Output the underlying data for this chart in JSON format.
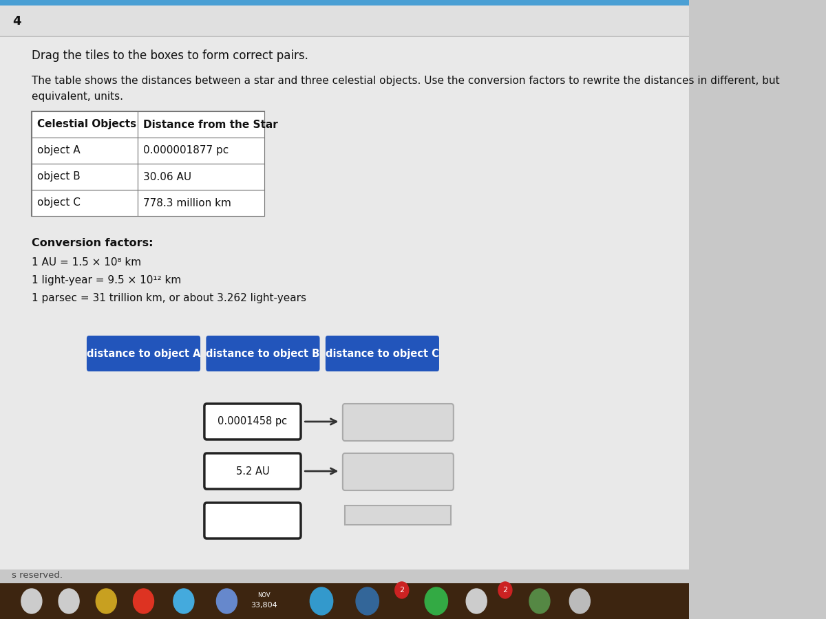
{
  "bg_outer": "#c8c8c8",
  "bg_page": "#e8e8e8",
  "question_number": "4",
  "instruction": "Drag the tiles to the boxes to form correct pairs.",
  "description_line1": "The table shows the distances between a star and three celestial objects. Use the conversion factors to rewrite the distances in different, but",
  "description_line2": "equivalent, units.",
  "table_headers": [
    "Celestial Objects",
    "Distance from the Star"
  ],
  "table_rows": [
    [
      "object A",
      "0.000001877 pc"
    ],
    [
      "object B",
      "30.06 AU"
    ],
    [
      "object C",
      "778.3 million km"
    ]
  ],
  "conversion_title": "Conversion factors:",
  "conversion_lines": [
    "1 AU = 1.5 × 10⁸ km",
    "1 light-year = 9.5 × 10¹² km",
    "1 parsec = 31 trillion km, or about 3.262 light-years"
  ],
  "blue_buttons": [
    "distance to object A",
    "distance to object B",
    "distance to object C"
  ],
  "tile_labels": [
    "0.0001458 pc",
    "5.2 AU",
    ""
  ],
  "footer_text": "s reserved.",
  "taskbar_text": "33,804",
  "button_color": "#2255bb",
  "button_text_color": "#ffffff",
  "table_header_text": "#111111",
  "table_row_bg": "#ffffff",
  "table_border": "#888888",
  "arrow_color": "#333333",
  "dropbox_border": "#aaaaaa",
  "dropbox_bg": "#d8d8d8",
  "tile_border": "#333333",
  "tile_bg": "#ffffff",
  "taskbar_bg": "#6b3a1f",
  "top_stripe": "#4a9fd4"
}
